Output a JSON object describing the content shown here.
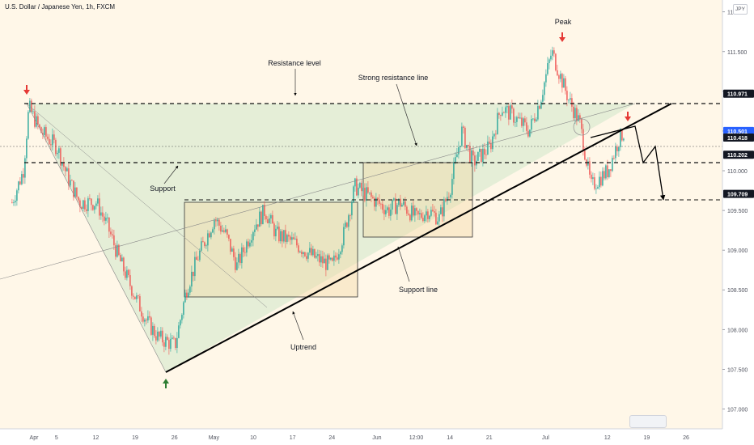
{
  "header": {
    "symbol_title": "U.S. Dollar / Japanese Yen, 1h, FXCM",
    "currency": "JPY"
  },
  "colors": {
    "up_candle": "#26a69a",
    "down_candle": "#ef5350",
    "trendline": "#000000",
    "channel_fill": "#cfe8c8",
    "zone_fill": "#f3d6a3",
    "price_tag_black": "#131722",
    "price_tag_blue": "#2962ff",
    "arrow_red": "#e53935",
    "arrow_green": "#2e7d32"
  },
  "axes": {
    "y_ticks": [
      {
        "value": 112.0,
        "label": "112.000"
      },
      {
        "value": 111.5,
        "label": "111.500"
      },
      {
        "value": 111.0,
        "label": "111.000"
      },
      {
        "value": 110.5,
        "label": "110.500"
      },
      {
        "value": 110.0,
        "label": "110.000"
      },
      {
        "value": 109.5,
        "label": "109.500"
      },
      {
        "value": 109.0,
        "label": "109.000"
      },
      {
        "value": 108.5,
        "label": "108.500"
      },
      {
        "value": 108.0,
        "label": "108.000"
      },
      {
        "value": 107.5,
        "label": "107.500"
      },
      {
        "value": 107.0,
        "label": "107.000"
      }
    ],
    "x_ticks": [
      {
        "label": "Apr",
        "date": "2021-04-01"
      },
      {
        "label": "5",
        "date": "2021-04-05"
      },
      {
        "label": "12",
        "date": "2021-04-12"
      },
      {
        "label": "19",
        "date": "2021-04-19"
      },
      {
        "label": "26",
        "date": "2021-04-26"
      },
      {
        "label": "May",
        "date": "2021-05-03"
      },
      {
        "label": "10",
        "date": "2021-05-10"
      },
      {
        "label": "17",
        "date": "2021-05-17"
      },
      {
        "label": "24",
        "date": "2021-05-24"
      },
      {
        "label": "Jun",
        "date": "2021-06-01"
      },
      {
        "label": "12:00",
        "date": "2021-06-08"
      },
      {
        "label": "14",
        "date": "2021-06-14"
      },
      {
        "label": "21",
        "date": "2021-06-21"
      },
      {
        "label": "Jul",
        "date": "2021-07-01"
      },
      {
        "label": "12",
        "date": "2021-07-12"
      },
      {
        "label": "19",
        "date": "2021-07-19"
      },
      {
        "label": "26",
        "date": "2021-07-26"
      }
    ]
  },
  "price_tags": [
    {
      "label": "110.971",
      "style": "black"
    },
    {
      "label": "110.501",
      "style": "blue",
      "sub": "53:38"
    },
    {
      "label": "110.418",
      "style": "black"
    },
    {
      "label": "110.202",
      "style": "black"
    },
    {
      "label": "109.709",
      "style": "black"
    }
  ],
  "annotations": {
    "peak": "Peak",
    "resistance_level": "Resistance level",
    "strong_resistance_line": "Strong resistance line",
    "support": "Support",
    "support_line": "Support line",
    "uptrend": "Uptrend"
  },
  "chart_data": {
    "type": "line",
    "title": "U.S. Dollar / Japanese Yen, 1h, FXCM",
    "xlabel": "",
    "ylabel": "",
    "ylim": [
      106.75,
      112.15
    ],
    "grid": false,
    "series": [
      {
        "name": "USD/JPY",
        "x": [
          "2021-03-28",
          "2021-03-30",
          "2021-03-31",
          "2021-04-02",
          "2021-04-05",
          "2021-04-07",
          "2021-04-09",
          "2021-04-12",
          "2021-04-14",
          "2021-04-16",
          "2021-04-19",
          "2021-04-21",
          "2021-04-23",
          "2021-04-26",
          "2021-04-28",
          "2021-04-30",
          "2021-05-03",
          "2021-05-05",
          "2021-05-07",
          "2021-05-10",
          "2021-05-12",
          "2021-05-14",
          "2021-05-17",
          "2021-05-19",
          "2021-05-21",
          "2021-05-24",
          "2021-05-26",
          "2021-05-28",
          "2021-06-01",
          "2021-06-03",
          "2021-06-05",
          "2021-06-08",
          "2021-06-10",
          "2021-06-12",
          "2021-06-14",
          "2021-06-16",
          "2021-06-18",
          "2021-06-21",
          "2021-06-23",
          "2021-06-25",
          "2021-06-28",
          "2021-06-30",
          "2021-07-02",
          "2021-07-05",
          "2021-07-07",
          "2021-07-09",
          "2021-07-12",
          "2021-07-14",
          "2021-07-15"
        ],
        "y": [
          109.6,
          110.0,
          110.8,
          110.5,
          110.3,
          109.9,
          109.6,
          109.6,
          109.3,
          108.9,
          108.4,
          108.1,
          107.9,
          107.8,
          108.5,
          108.9,
          109.4,
          109.2,
          108.8,
          109.3,
          109.5,
          109.2,
          109.1,
          109.0,
          108.9,
          108.8,
          109.2,
          109.8,
          109.6,
          109.5,
          109.6,
          109.4,
          109.5,
          109.4,
          109.8,
          110.5,
          110.1,
          110.3,
          110.8,
          110.7,
          110.5,
          110.9,
          111.5,
          110.9,
          110.6,
          109.8,
          110.0,
          110.4,
          110.5
        ]
      }
    ],
    "horizontal_levels": [
      110.971,
      110.418,
      110.202,
      109.709
    ],
    "last_price": 110.501
  }
}
